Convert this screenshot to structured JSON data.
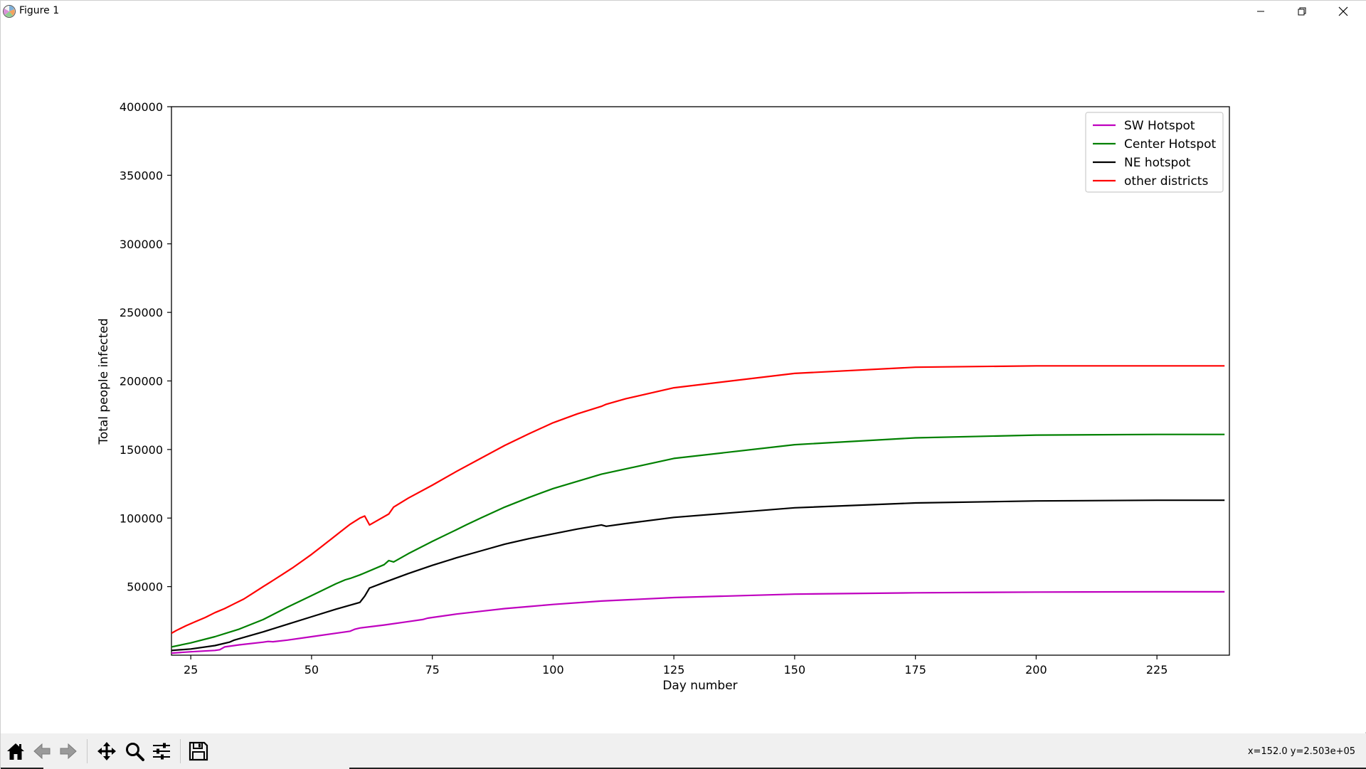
{
  "window": {
    "title": "Figure 1",
    "minimize_icon": "minimize-icon",
    "maximize_icon": "restore-icon",
    "close_icon": "close-icon"
  },
  "toolbar": {
    "buttons": [
      {
        "name": "home-button",
        "icon": "home-icon"
      },
      {
        "name": "back-button",
        "icon": "arrow-left-icon"
      },
      {
        "name": "forward-button",
        "icon": "arrow-right-icon"
      },
      {
        "name": "pan-button",
        "icon": "move-icon"
      },
      {
        "name": "zoom-button",
        "icon": "magnifier-icon"
      },
      {
        "name": "configure-subplots-button",
        "icon": "sliders-icon"
      },
      {
        "name": "save-button",
        "icon": "floppy-disk-icon"
      }
    ],
    "coords": "x=152.0 y=2.503e+05"
  },
  "chart_data": {
    "type": "line",
    "title": "",
    "xlabel": "Day number",
    "ylabel": "Total people infected",
    "xlim": [
      21,
      240
    ],
    "ylim": [
      0,
      400000
    ],
    "xticks": [
      25,
      50,
      75,
      100,
      125,
      150,
      175,
      200,
      225
    ],
    "yticks": [
      50000,
      100000,
      150000,
      200000,
      250000,
      300000,
      350000,
      400000
    ],
    "grid": false,
    "legend_position": "upper right",
    "series": [
      {
        "name": "SW Hotspot",
        "color": "#bf00bf",
        "x": [
          21,
          25,
          30,
          31,
          32,
          35,
          40,
          41,
          42,
          45,
          50,
          55,
          58,
          59,
          60,
          65,
          70,
          73,
          74,
          75,
          80,
          85,
          90,
          95,
          100,
          110,
          125,
          150,
          175,
          200,
          225,
          239
        ],
        "y": [
          1500,
          2500,
          3500,
          4000,
          6000,
          7500,
          9500,
          10000,
          9800,
          11000,
          13500,
          16000,
          17500,
          19000,
          19800,
          22000,
          24500,
          26000,
          27000,
          27500,
          30000,
          32000,
          34000,
          35500,
          37000,
          39500,
          42000,
          44500,
          45500,
          46000,
          46200,
          46200
        ]
      },
      {
        "name": "Center Hotspot",
        "color": "#008000",
        "x": [
          21,
          25,
          30,
          35,
          40,
          45,
          50,
          55,
          57,
          58,
          60,
          65,
          66,
          67,
          70,
          75,
          80,
          82,
          85,
          90,
          95,
          100,
          110,
          125,
          150,
          175,
          200,
          225,
          239
        ],
        "y": [
          6000,
          9000,
          13500,
          19000,
          26000,
          35000,
          43500,
          52000,
          55000,
          56000,
          58500,
          66000,
          69000,
          68000,
          74000,
          83000,
          91500,
          95000,
          100000,
          108000,
          115000,
          121500,
          132000,
          143500,
          153500,
          158500,
          160500,
          161000,
          161000
        ]
      },
      {
        "name": "NE hotspot",
        "color": "#000000",
        "x": [
          21,
          25,
          30,
          33,
          34,
          40,
          45,
          50,
          55,
          60,
          61,
          62,
          65,
          70,
          75,
          80,
          85,
          90,
          95,
          100,
          105,
          110,
          111,
          115,
          125,
          150,
          175,
          200,
          225,
          239
        ],
        "y": [
          3500,
          4500,
          7000,
          9500,
          11000,
          17000,
          22500,
          28000,
          33500,
          38500,
          43000,
          49000,
          53000,
          59500,
          65500,
          71000,
          76000,
          81000,
          85000,
          88500,
          92000,
          95000,
          94000,
          96000,
          100500,
          107500,
          111000,
          112500,
          113000,
          113000
        ]
      },
      {
        "name": "other districts",
        "color": "#ff0000",
        "x": [
          21,
          22,
          24,
          26,
          28,
          30,
          32,
          34,
          36,
          38,
          40,
          42,
          44,
          46,
          48,
          50,
          52,
          54,
          56,
          58,
          60,
          61,
          62,
          64,
          66,
          67,
          70,
          75,
          80,
          85,
          90,
          95,
          100,
          105,
          110,
          111,
          115,
          125,
          150,
          175,
          200,
          225,
          239
        ],
        "y": [
          16000,
          18000,
          21500,
          24500,
          27500,
          31000,
          34000,
          37500,
          41000,
          45500,
          50000,
          54500,
          59000,
          63500,
          68500,
          73500,
          79000,
          84500,
          90000,
          95500,
          100000,
          101500,
          95000,
          99000,
          103000,
          108000,
          114500,
          124000,
          134000,
          143500,
          153000,
          161500,
          169500,
          176000,
          181500,
          183000,
          187000,
          195000,
          205500,
          210000,
          211000,
          211000,
          211000
        ]
      }
    ]
  }
}
